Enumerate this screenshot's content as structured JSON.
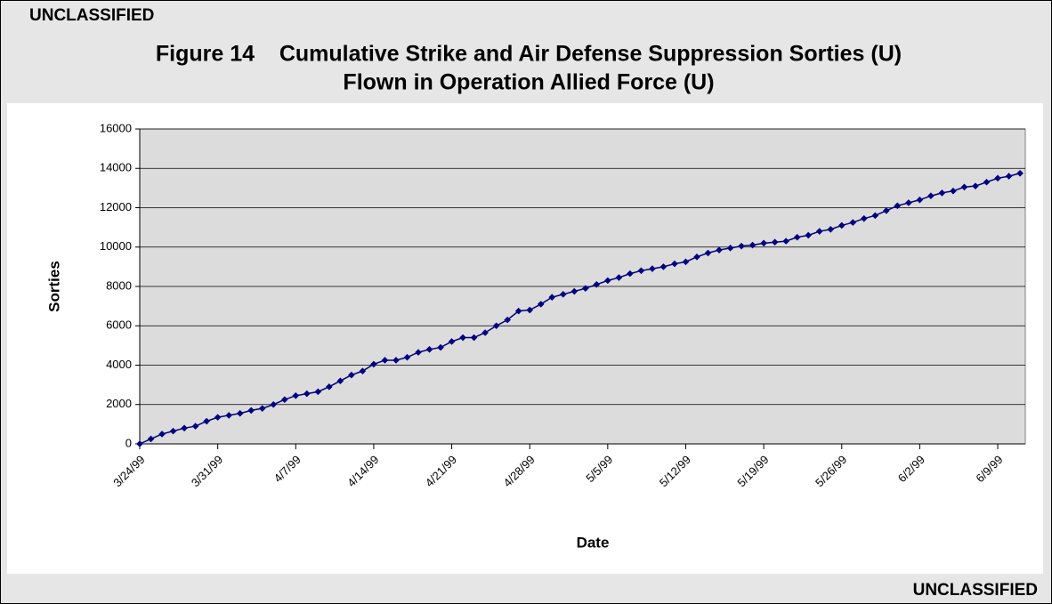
{
  "banner": {
    "top": "UNCLASSIFIED",
    "bottom": "UNCLASSIFIED"
  },
  "chart_data": {
    "type": "line",
    "title": [
      "Figure 14    Cumulative Strike and Air Defense Suppression Sorties (U)",
      "Flown in Operation Allied Force (U)"
    ],
    "x_label": "Date",
    "y_label": "Sorties",
    "x": [
      "3/24/99",
      "3/25/99",
      "3/26/99",
      "3/27/99",
      "3/28/99",
      "3/29/99",
      "3/30/99",
      "3/31/99",
      "4/1/99",
      "4/2/99",
      "4/3/99",
      "4/4/99",
      "4/5/99",
      "4/6/99",
      "4/7/99",
      "4/8/99",
      "4/9/99",
      "4/10/99",
      "4/11/99",
      "4/12/99",
      "4/13/99",
      "4/14/99",
      "4/15/99",
      "4/16/99",
      "4/17/99",
      "4/18/99",
      "4/19/99",
      "4/20/99",
      "4/21/99",
      "4/22/99",
      "4/23/99",
      "4/24/99",
      "4/25/99",
      "4/26/99",
      "4/27/99",
      "4/28/99",
      "4/29/99",
      "4/30/99",
      "5/1/99",
      "5/2/99",
      "5/3/99",
      "5/4/99",
      "5/5/99",
      "5/6/99",
      "5/7/99",
      "5/8/99",
      "5/9/99",
      "5/10/99",
      "5/11/99",
      "5/12/99",
      "5/13/99",
      "5/14/99",
      "5/15/99",
      "5/16/99",
      "5/17/99",
      "5/18/99",
      "5/19/99",
      "5/20/99",
      "5/21/99",
      "5/22/99",
      "5/23/99",
      "5/24/99",
      "5/25/99",
      "5/26/99",
      "5/27/99",
      "5/28/99",
      "5/29/99",
      "5/30/99",
      "5/31/99",
      "6/1/99",
      "6/2/99",
      "6/3/99",
      "6/4/99",
      "6/5/99",
      "6/6/99",
      "6/7/99",
      "6/8/99",
      "6/9/99",
      "6/10/99",
      "6/11/99"
    ],
    "xticks": [
      "3/24/99",
      "3/31/99",
      "4/7/99",
      "4/14/99",
      "4/21/99",
      "4/28/99",
      "5/5/99",
      "5/12/99",
      "5/19/99",
      "5/26/99",
      "6/2/99",
      "6/9/99"
    ],
    "series": [
      {
        "name": "Sorties",
        "color": "#000080",
        "values": [
          0,
          250,
          500,
          650,
          800,
          900,
          1150,
          1350,
          1450,
          1550,
          1700,
          1800,
          2000,
          2250,
          2450,
          2550,
          2650,
          2900,
          3200,
          3500,
          3700,
          4050,
          4250,
          4250,
          4400,
          4650,
          4800,
          4900,
          5200,
          5400,
          5400,
          5650,
          6000,
          6300,
          6750,
          6800,
          7100,
          7450,
          7600,
          7750,
          7900,
          8100,
          8300,
          8450,
          8650,
          8800,
          8900,
          9000,
          9150,
          9250,
          9500,
          9700,
          9850,
          9950,
          10050,
          10100,
          10200,
          10250,
          10300,
          10500,
          10600,
          10800,
          10900,
          11100,
          11250,
          11450,
          11600,
          11850,
          12100,
          12250,
          12400,
          12600,
          12750,
          12850,
          13050,
          13100,
          13300,
          13500,
          13600,
          13750
        ]
      }
    ],
    "ylim": [
      0,
      16000
    ],
    "yticks": [
      0,
      2000,
      4000,
      6000,
      8000,
      10000,
      12000,
      14000,
      16000
    ],
    "grid": true
  }
}
